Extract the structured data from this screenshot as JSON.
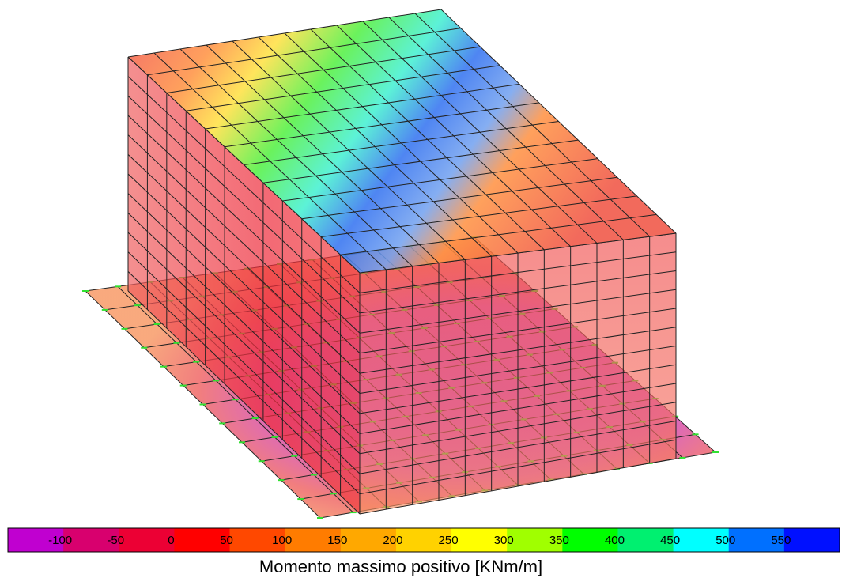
{
  "legend": {
    "title": "Momento massimo positivo  [KNm/m]",
    "ticks": [
      -100,
      -50,
      0,
      50,
      100,
      150,
      200,
      250,
      300,
      350,
      400,
      450,
      500,
      550
    ],
    "colors": [
      "#c000d0",
      "#d8006e",
      "#ec0034",
      "#ff0000",
      "#ff4800",
      "#ff7c00",
      "#ffa800",
      "#ffd200",
      "#ffff00",
      "#a0ff00",
      "#00ff00",
      "#00f070",
      "#00ffff",
      "#0070ff",
      "#0010ff"
    ]
  }
}
